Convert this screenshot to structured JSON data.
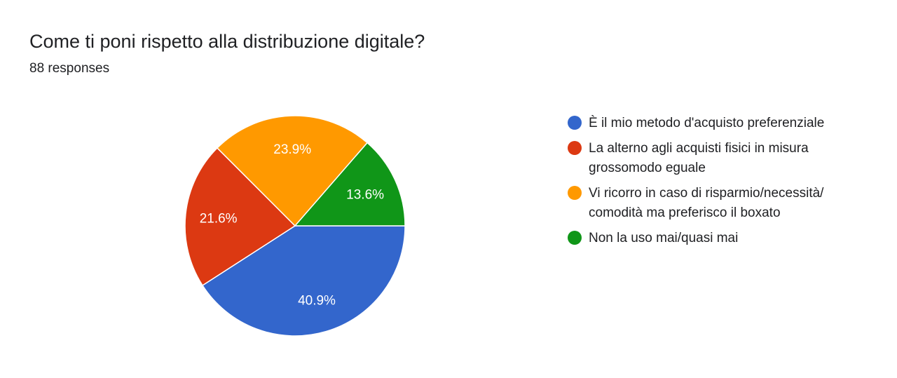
{
  "header": {
    "title": "Come ti poni rispetto alla distribuzione digitale?",
    "responses": "88 responses"
  },
  "legend": {
    "items": [
      {
        "label": "È il mio metodo d'acquisto preferenziale",
        "color": "#3366cc"
      },
      {
        "label": "La alterno agli acquisti fisici in misura grossomodo eguale",
        "color": "#dc3912"
      },
      {
        "label": "Vi ricorro in caso di risparmio/necessità/ comodità ma preferisco il boxato",
        "color": "#ff9900"
      },
      {
        "label": "Non la uso mai/quasi mai",
        "color": "#109618"
      }
    ]
  },
  "chart_data": {
    "type": "pie",
    "title": "Come ti poni rispetto alla distribuzione digitale?",
    "categories": [
      "È il mio metodo d'acquisto preferenziale",
      "La alterno agli acquisti fisici in misura grossomodo eguale",
      "Vi ricorro in caso di risparmio/necessità/ comodità ma preferisco il boxato",
      "Non la uso mai/quasi mai"
    ],
    "values": [
      40.9,
      21.6,
      23.9,
      13.6
    ],
    "labels": [
      "40.9%",
      "21.6%",
      "23.9%",
      "13.6%"
    ],
    "colors": [
      "#3366cc",
      "#dc3912",
      "#ff9900",
      "#109618"
    ],
    "legend": "right"
  }
}
